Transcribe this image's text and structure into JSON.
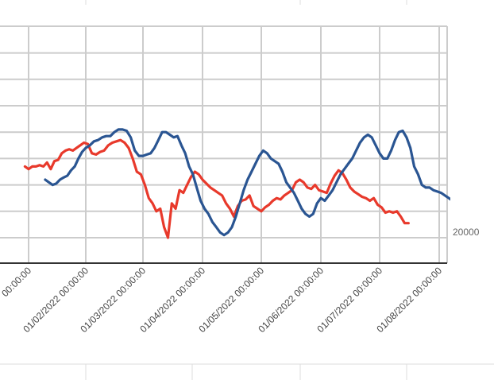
{
  "chart_data": {
    "type": "line",
    "x_ticks": [
      "00:00:00",
      "01/02/2022 00:00:00",
      "01/03/2022 00:00:00",
      "01/04/2022 00:00:00",
      "01/05/2022 00:00:00",
      "01/06/2022 00:00:00",
      "01/07/2022 00:00:00",
      "01/08/2022 00:00:00"
    ],
    "y_tick_label": "20000",
    "grid": true,
    "series": [
      {
        "color": "#2a5592",
        "values": [
          42000,
          41000,
          40000,
          40500,
          42000,
          42800,
          43500,
          45500,
          47000,
          50000,
          52500,
          54000,
          55000,
          56500,
          57000,
          58000,
          58500,
          58500,
          60000,
          61000,
          61000,
          60500,
          58000,
          53000,
          51000,
          51000,
          51500,
          52000,
          54000,
          57000,
          60000,
          60000,
          59000,
          58000,
          58500,
          55000,
          52000,
          47000,
          44000,
          39000,
          34000,
          31000,
          29000,
          26000,
          24000,
          22000,
          21000,
          22000,
          24000,
          28000,
          33000,
          38000,
          42000,
          45000,
          48000,
          51000,
          53000,
          52000,
          50000,
          49000,
          48000,
          45000,
          41000,
          39000,
          37000,
          34000,
          31000,
          29000,
          28000,
          29000,
          33000,
          35000,
          34000,
          36000,
          38000,
          41000,
          44000,
          46000,
          48000,
          50000,
          53000,
          56000,
          58000,
          59000,
          58000,
          55000,
          52000,
          50000,
          50000,
          53000,
          57000,
          60000,
          60500,
          58000,
          54000,
          47000,
          44000,
          40000,
          39000,
          39000,
          38000,
          37500,
          37000,
          36000,
          35000,
          34000,
          31000,
          29500
        ],
        "x_start": "2022-01-10",
        "x_step_days": 2
      },
      {
        "color": "#e8392b",
        "values": [
          47000,
          46000,
          47000,
          47000,
          47500,
          47000,
          48500,
          46000,
          49000,
          49500,
          52000,
          53000,
          53500,
          53000,
          54000,
          55000,
          56000,
          55500,
          52000,
          51500,
          52500,
          53000,
          55000,
          56000,
          56500,
          57000,
          56000,
          54000,
          50000,
          45000,
          44000,
          40000,
          35000,
          33000,
          30000,
          31000,
          24000,
          20000,
          33000,
          31000,
          38000,
          37000,
          40000,
          43000,
          45000,
          44000,
          42000,
          40500,
          39000,
          38000,
          37000,
          36000,
          33000,
          31000,
          28000,
          32000,
          34000,
          34500,
          36000,
          32000,
          31000,
          30000,
          31500,
          32500,
          34000,
          35000,
          34500,
          36000,
          37000,
          38000,
          41000,
          42000,
          41000,
          39000,
          38500,
          40000,
          38000,
          37500,
          37000,
          40500,
          43500,
          45500,
          44500,
          42000,
          39000,
          37500,
          36500,
          35500,
          35000,
          34000,
          35000,
          32500,
          31500,
          29500,
          30000,
          29500,
          30000,
          28000,
          25500,
          25500
        ],
        "x_start": "2021-12-30",
        "x_step_days": 2
      }
    ]
  }
}
